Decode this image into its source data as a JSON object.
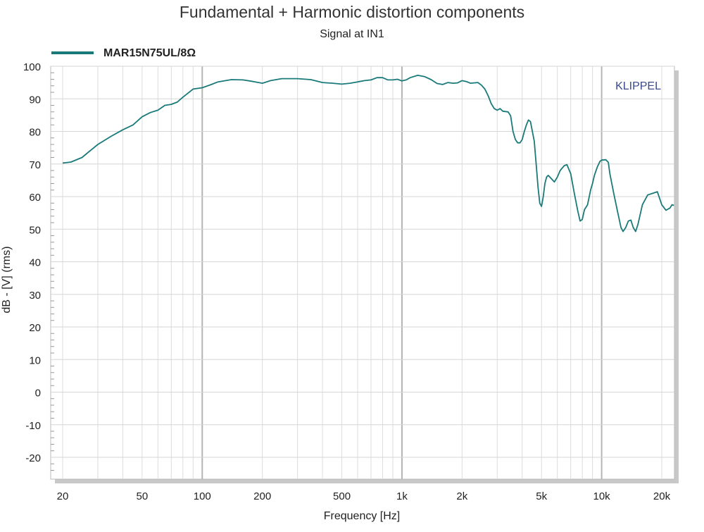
{
  "chart_data": {
    "type": "line",
    "title": "Fundamental + Harmonic distortion components",
    "subtitle": "Signal at IN1",
    "xlabel": "Frequency [Hz]",
    "ylabel": "dB - [V]  (rms)",
    "watermark": "KLIPPEL",
    "x_scale": "log",
    "xlim": [
      20,
      20000
    ],
    "ylim": [
      -25,
      100
    ],
    "grid": true,
    "legend_position": "top-left",
    "x_ticks": [
      {
        "value": 20,
        "label": "20"
      },
      {
        "value": 50,
        "label": "50"
      },
      {
        "value": 100,
        "label": "100"
      },
      {
        "value": 200,
        "label": "200"
      },
      {
        "value": 500,
        "label": "500"
      },
      {
        "value": 1000,
        "label": "1k"
      },
      {
        "value": 2000,
        "label": "2k"
      },
      {
        "value": 5000,
        "label": "5k"
      },
      {
        "value": 10000,
        "label": "10k"
      },
      {
        "value": 20000,
        "label": "20k"
      }
    ],
    "y_ticks": [
      {
        "value": 100,
        "label": "100"
      },
      {
        "value": 90,
        "label": "90"
      },
      {
        "value": 80,
        "label": "80"
      },
      {
        "value": 70,
        "label": "70"
      },
      {
        "value": 60,
        "label": "60"
      },
      {
        "value": 50,
        "label": "50"
      },
      {
        "value": 40,
        "label": "40"
      },
      {
        "value": 30,
        "label": "30"
      },
      {
        "value": 20,
        "label": "20"
      },
      {
        "value": 10,
        "label": "10"
      },
      {
        "value": 0,
        "label": "0"
      },
      {
        "value": -10,
        "label": "-10"
      },
      {
        "value": -20,
        "label": "-20"
      }
    ],
    "series": [
      {
        "name": "MAR15N75UL/8Ω",
        "color": "#1a7a7a",
        "points": [
          [
            20,
            70.3
          ],
          [
            22,
            70.6
          ],
          [
            25,
            72
          ],
          [
            28,
            74.5
          ],
          [
            30,
            76
          ],
          [
            35,
            78.5
          ],
          [
            40,
            80.5
          ],
          [
            45,
            82
          ],
          [
            50,
            84.5
          ],
          [
            55,
            85.8
          ],
          [
            60,
            86.5
          ],
          [
            65,
            88
          ],
          [
            70,
            88.3
          ],
          [
            75,
            89
          ],
          [
            80,
            90.5
          ],
          [
            90,
            93
          ],
          [
            100,
            93.4
          ],
          [
            110,
            94.3
          ],
          [
            120,
            95.2
          ],
          [
            140,
            95.9
          ],
          [
            160,
            95.8
          ],
          [
            180,
            95.3
          ],
          [
            200,
            94.8
          ],
          [
            220,
            95.6
          ],
          [
            250,
            96.2
          ],
          [
            300,
            96.2
          ],
          [
            350,
            95.9
          ],
          [
            400,
            95
          ],
          [
            450,
            94.8
          ],
          [
            500,
            94.5
          ],
          [
            550,
            94.8
          ],
          [
            600,
            95.2
          ],
          [
            650,
            95.6
          ],
          [
            700,
            95.8
          ],
          [
            750,
            96.5
          ],
          [
            800,
            96.5
          ],
          [
            850,
            95.8
          ],
          [
            900,
            95.8
          ],
          [
            950,
            96
          ],
          [
            1000,
            95.5
          ],
          [
            1050,
            95.8
          ],
          [
            1100,
            96.5
          ],
          [
            1200,
            97.2
          ],
          [
            1300,
            96.8
          ],
          [
            1400,
            95.9
          ],
          [
            1500,
            94.7
          ],
          [
            1600,
            94.4
          ],
          [
            1700,
            95
          ],
          [
            1800,
            94.8
          ],
          [
            1900,
            94.9
          ],
          [
            2000,
            95.6
          ],
          [
            2100,
            95.3
          ],
          [
            2200,
            94.8
          ],
          [
            2400,
            95
          ],
          [
            2500,
            94.2
          ],
          [
            2600,
            93
          ],
          [
            2700,
            91
          ],
          [
            2800,
            88.5
          ],
          [
            2900,
            87
          ],
          [
            3000,
            86.5
          ],
          [
            3100,
            87
          ],
          [
            3200,
            86.2
          ],
          [
            3400,
            86
          ],
          [
            3500,
            84.8
          ],
          [
            3600,
            80
          ],
          [
            3700,
            77.5
          ],
          [
            3800,
            76.5
          ],
          [
            3900,
            76.5
          ],
          [
            4000,
            77.5
          ],
          [
            4100,
            80
          ],
          [
            4200,
            82
          ],
          [
            4300,
            83.5
          ],
          [
            4400,
            83
          ],
          [
            4500,
            80
          ],
          [
            4600,
            77
          ],
          [
            4700,
            70
          ],
          [
            4800,
            63
          ],
          [
            4900,
            58
          ],
          [
            5000,
            57
          ],
          [
            5100,
            60
          ],
          [
            5200,
            64
          ],
          [
            5300,
            66
          ],
          [
            5400,
            66.5
          ],
          [
            5600,
            65.5
          ],
          [
            5800,
            64.5
          ],
          [
            6000,
            66
          ],
          [
            6200,
            68
          ],
          [
            6500,
            69.5
          ],
          [
            6700,
            69.8
          ],
          [
            7000,
            67
          ],
          [
            7300,
            61
          ],
          [
            7600,
            55.5
          ],
          [
            7800,
            52.5
          ],
          [
            8000,
            53
          ],
          [
            8200,
            56
          ],
          [
            8500,
            57.5
          ],
          [
            8800,
            62
          ],
          [
            9000,
            64
          ],
          [
            9200,
            66.5
          ],
          [
            9500,
            69
          ],
          [
            9800,
            70.8
          ],
          [
            10000,
            71.2
          ],
          [
            10500,
            71.3
          ],
          [
            10800,
            70.5
          ],
          [
            11000,
            67
          ],
          [
            11500,
            61
          ],
          [
            12000,
            55.5
          ],
          [
            12500,
            50.5
          ],
          [
            12800,
            49.3
          ],
          [
            13200,
            50.5
          ],
          [
            13600,
            52.5
          ],
          [
            14000,
            52.8
          ],
          [
            14400,
            50.5
          ],
          [
            14800,
            49.3
          ],
          [
            15200,
            51.5
          ],
          [
            16000,
            57.5
          ],
          [
            17000,
            60.5
          ],
          [
            18000,
            61
          ],
          [
            19000,
            61.5
          ],
          [
            19500,
            59.5
          ],
          [
            20000,
            57.5
          ],
          [
            21000,
            55.8
          ],
          [
            22000,
            56.5
          ],
          [
            22500,
            57.5
          ],
          [
            23000,
            57.3
          ]
        ]
      }
    ]
  }
}
